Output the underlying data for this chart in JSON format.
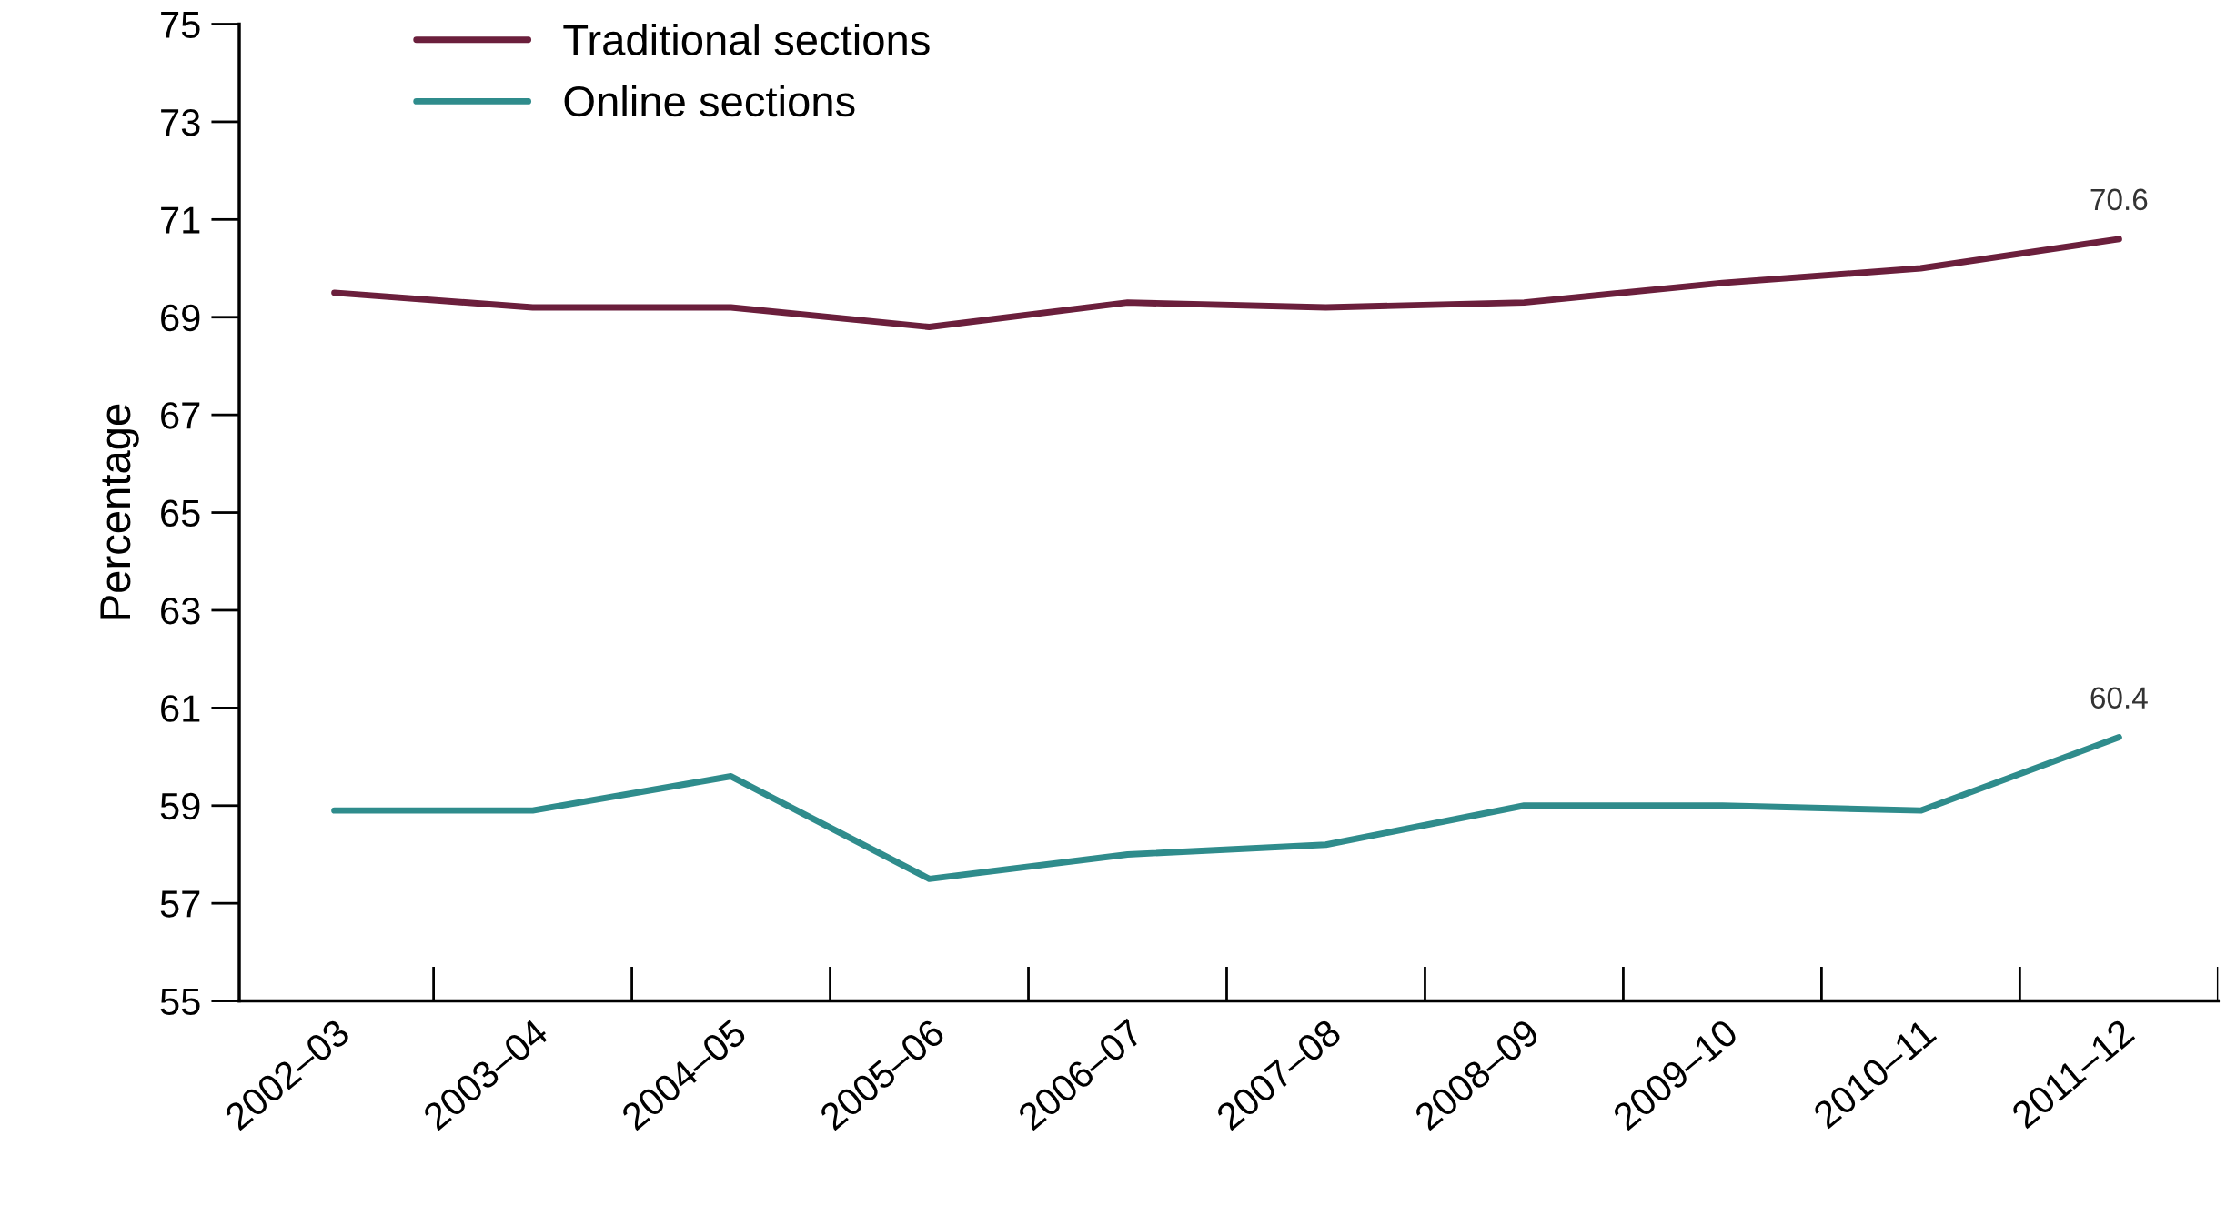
{
  "chart_data": {
    "type": "line",
    "ylabel": "Percentage",
    "categories": [
      "2002–03",
      "2003–04",
      "2004–05",
      "2005–06",
      "2006–07",
      "2007–08",
      "2008–09",
      "2009–10",
      "2010–11",
      "2011–12"
    ],
    "series": [
      {
        "name": "Traditional sections",
        "color": "#6b1f3c",
        "values": [
          69.5,
          69.2,
          69.2,
          68.8,
          69.3,
          69.2,
          69.3,
          69.7,
          70.0,
          70.6
        ],
        "value_labels": [
          null,
          null,
          null,
          null,
          null,
          null,
          null,
          null,
          null,
          "70.6"
        ]
      },
      {
        "name": "Online sections",
        "color": "#2f8c8c",
        "values": [
          58.9,
          58.9,
          59.6,
          57.5,
          58.0,
          58.2,
          59.0,
          59.0,
          58.9,
          60.4
        ],
        "value_labels": [
          null,
          null,
          null,
          null,
          null,
          null,
          null,
          null,
          null,
          "60.4"
        ]
      }
    ],
    "ylim": [
      55,
      75
    ],
    "yticks": [
      55,
      57,
      59,
      61,
      63,
      65,
      67,
      69,
      71,
      73,
      75
    ],
    "grid": false,
    "legend": "top left",
    "marker": "none",
    "line_style": "solid"
  }
}
